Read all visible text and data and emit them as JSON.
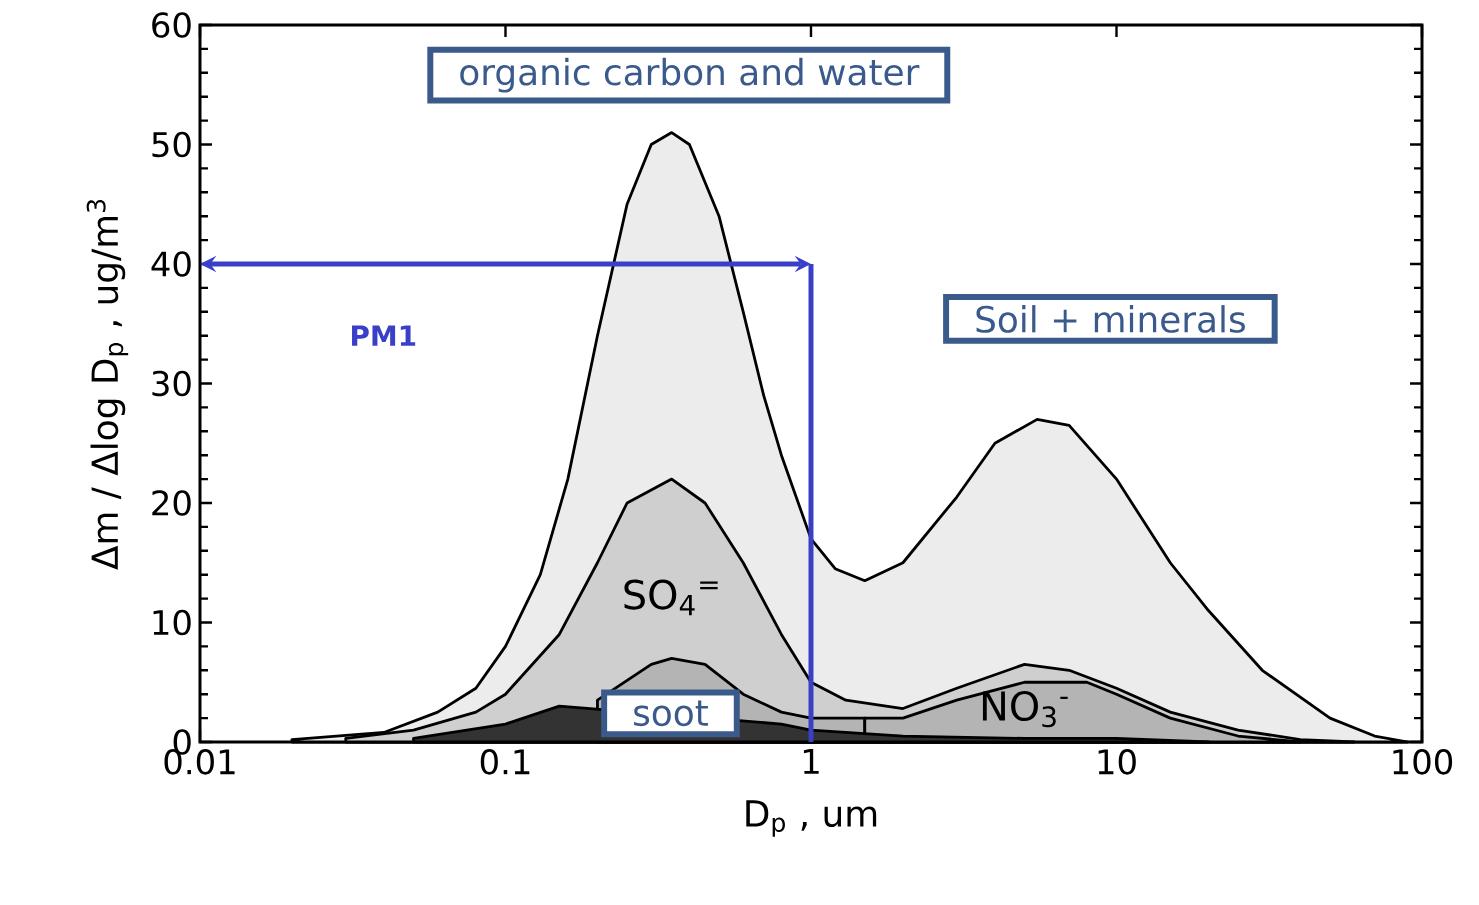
{
  "chart_data": {
    "type": "area",
    "xlabel": "D$_{p}$ , um",
    "ylabel": "Δm / Δlog D$_{p}$ , ug/m$^{3}$",
    "log": "x",
    "xlim": [
      0.01,
      100
    ],
    "xticks": [
      0.01,
      0.1,
      1,
      10,
      100
    ],
    "ylim": [
      0,
      60
    ],
    "yticks": [
      0,
      10,
      20,
      30,
      40,
      50,
      60
    ],
    "series": [
      {
        "color": "#ececec",
        "x": [
          0.02,
          0.04,
          0.06,
          0.08,
          0.1,
          0.13,
          0.16,
          0.2,
          0.25,
          0.3,
          0.35,
          0.4,
          0.5,
          0.6,
          0.7,
          0.8,
          1,
          1.2,
          1.5,
          2,
          3,
          4,
          5.5,
          7,
          10,
          15,
          20,
          30,
          50,
          70,
          90
        ],
        "values": [
          0.2,
          0.8,
          2.5,
          4.5,
          8,
          14,
          22,
          34,
          45,
          50,
          51,
          50,
          44,
          36,
          29,
          24,
          17,
          14.5,
          13.5,
          15,
          20.5,
          25,
          27,
          26.5,
          22,
          15,
          11,
          6,
          2,
          0.5,
          0
        ]
      },
      {
        "name": "SO$_{4}$$^{=}$",
        "color": "#cfcfcf",
        "x": [
          0.03,
          0.05,
          0.08,
          0.1,
          0.15,
          0.2,
          0.25,
          0.35,
          0.45,
          0.6,
          0.8,
          1,
          1.3,
          2,
          3,
          5,
          7,
          10,
          15,
          25,
          40,
          60
        ],
        "values": [
          0.3,
          1,
          2.5,
          4,
          9,
          15,
          20,
          22,
          20,
          15,
          9,
          5,
          3.5,
          2.8,
          4.5,
          6.5,
          6,
          4.5,
          2.5,
          1,
          0.2,
          0
        ]
      },
      {
        "color": "#b4b4b4",
        "x": [
          0.2,
          0.3,
          0.35,
          0.45,
          0.6,
          0.8,
          1,
          1.5
        ],
        "values": [
          3.5,
          6.5,
          7,
          6.5,
          4,
          2.5,
          2,
          2
        ]
      },
      {
        "name": "NO$_{3}$$^{-}$",
        "color": "#b4b4b4",
        "x": [
          1.5,
          2,
          3,
          5,
          8,
          10,
          15,
          25,
          40
        ],
        "values": [
          2,
          2,
          3.5,
          5,
          5,
          4,
          2,
          0.5,
          0
        ]
      },
      {
        "color": "#333333",
        "x": [
          0.05,
          0.1,
          0.15,
          0.25,
          0.35,
          0.5,
          0.8,
          1,
          2,
          5,
          10,
          20
        ],
        "values": [
          0.3,
          1.5,
          3,
          null,
          null,
          null,
          1.5,
          1,
          0.5,
          0.3,
          0.3,
          0
        ]
      }
    ],
    "ref_lines": [
      {
        "axis": "x",
        "value": 1,
        "label": "PM1",
        "color": "#3a3fc8"
      }
    ],
    "annotations": [
      "organic carbon and water",
      "Soil + minerals",
      "soot"
    ]
  }
}
